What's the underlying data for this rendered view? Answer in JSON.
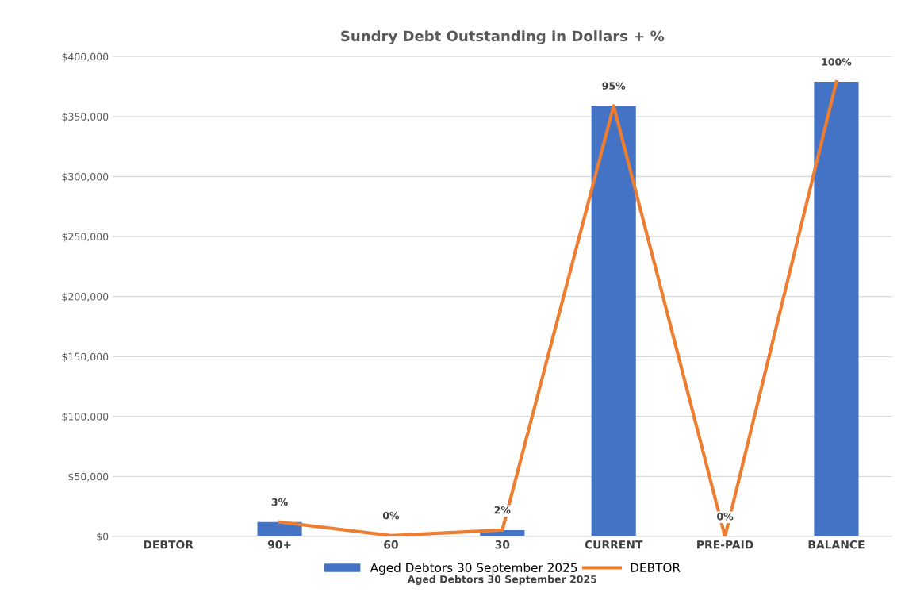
{
  "chart_data": {
    "type": "bar",
    "title": "Sundry Debt Outstanding in Dollars + %",
    "xlabel": "Aged Debtors 30 September 2025",
    "categories": [
      "DEBTOR",
      "90+",
      "60",
      "30",
      "CURRENT",
      "PRE-PAID",
      "BALANCE"
    ],
    "series": [
      {
        "name": "Aged Debtors 30 September 2025",
        "color": "#4472c4",
        "values": [
          null,
          12000,
          0,
          5300,
          359000,
          0,
          379000
        ]
      },
      {
        "name": "DEBTOR",
        "type": "line",
        "color": "#ed7d31",
        "values": [
          null,
          12000,
          700,
          5300,
          359000,
          0,
          379000
        ]
      }
    ],
    "annotations": [
      {
        "text": "3%",
        "x": "90+",
        "y": 12000
      },
      {
        "text": "0%",
        "x": "60",
        "y": 700
      },
      {
        "text": "2%",
        "x": "30",
        "y": 5300
      },
      {
        "text": "95%",
        "x": "CURRENT",
        "y": 359000
      },
      {
        "text": "0%",
        "x": "PRE-PAID",
        "y": 0
      },
      {
        "text": "100%",
        "x": "BALANCE",
        "y": 379000
      }
    ],
    "ylim": [
      0,
      400000
    ],
    "yticks": [
      {
        "value": 0,
        "label": "$0"
      },
      {
        "value": 50000,
        "label": "$50,000"
      },
      {
        "value": 100000,
        "label": "$100,000"
      },
      {
        "value": 150000,
        "label": "$150,000"
      },
      {
        "value": 200000,
        "label": "$200,000"
      },
      {
        "value": 250000,
        "label": "$250,000"
      },
      {
        "value": 300000,
        "label": "$300,000"
      },
      {
        "value": 350000,
        "label": "$350,000"
      },
      {
        "value": 400000,
        "label": "$400,000"
      }
    ],
    "grid": "y",
    "legend": "bottom",
    "marker": "none",
    "line_style": "solid"
  }
}
